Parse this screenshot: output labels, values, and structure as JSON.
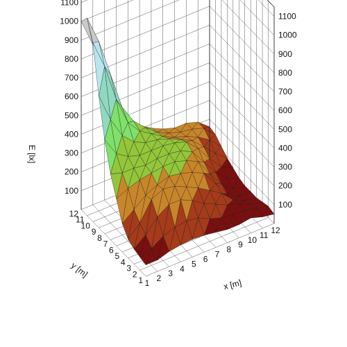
{
  "chart_data": {
    "type": "surface3d",
    "xlabel": "x [m]",
    "ylabel": "y [m]",
    "zlabel": "E [lx]",
    "x_ticks": [
      1,
      2,
      3,
      4,
      5,
      6,
      7,
      8,
      9,
      10,
      11,
      12
    ],
    "y_ticks": [
      1,
      2,
      3,
      4,
      5,
      6,
      7,
      8,
      9,
      10,
      11,
      12
    ],
    "z_ticks": [
      100,
      200,
      300,
      400,
      500,
      600,
      700,
      800,
      900,
      1000,
      1100
    ],
    "xlim": [
      1,
      12
    ],
    "ylim": [
      1,
      12
    ],
    "zlim": [
      0,
      1150
    ],
    "grid": true,
    "colormap": [
      {
        "max": 100,
        "color": "#7a0f0f"
      },
      {
        "max": 200,
        "color": "#a53b1a"
      },
      {
        "max": 300,
        "color": "#c8862a"
      },
      {
        "max": 400,
        "color": "#93c63a"
      },
      {
        "max": 550,
        "color": "#7fe06a"
      },
      {
        "max": 750,
        "color": "#8fd9c0"
      },
      {
        "max": 950,
        "color": "#b8e6ef"
      },
      {
        "max": 1200,
        "color": "#c9c9c9"
      }
    ],
    "x": [
      1,
      2,
      3,
      4,
      5,
      6,
      7,
      8,
      9,
      10,
      11,
      12
    ],
    "y": [
      1,
      2,
      3,
      4,
      5,
      6,
      7,
      8,
      9,
      10,
      11,
      12
    ],
    "z": [
      [
        60,
        60,
        80,
        90,
        95,
        90,
        80,
        70,
        70,
        80,
        60,
        50
      ],
      [
        70,
        90,
        130,
        150,
        160,
        150,
        120,
        100,
        90,
        90,
        70,
        60
      ],
      [
        80,
        130,
        200,
        240,
        240,
        210,
        170,
        140,
        110,
        90,
        60,
        50
      ],
      [
        100,
        160,
        260,
        290,
        280,
        250,
        220,
        180,
        140,
        80,
        50,
        40
      ],
      [
        150,
        200,
        250,
        280,
        300,
        290,
        270,
        240,
        160,
        80,
        40,
        40
      ],
      [
        250,
        280,
        300,
        310,
        320,
        320,
        300,
        270,
        180,
        100,
        50,
        40
      ],
      [
        350,
        330,
        330,
        320,
        330,
        330,
        320,
        290,
        210,
        130,
        70,
        50
      ],
      [
        500,
        400,
        360,
        340,
        340,
        340,
        330,
        310,
        250,
        170,
        100,
        70
      ],
      [
        700,
        550,
        440,
        380,
        350,
        340,
        320,
        290,
        260,
        200,
        140,
        90
      ],
      [
        950,
        800,
        600,
        450,
        380,
        340,
        300,
        270,
        250,
        220,
        180,
        120
      ],
      [
        1050,
        900,
        700,
        500,
        400,
        340,
        290,
        260,
        240,
        230,
        210,
        150
      ],
      [
        1000,
        850,
        650,
        480,
        380,
        320,
        280,
        250,
        230,
        230,
        210,
        160
      ]
    ]
  }
}
